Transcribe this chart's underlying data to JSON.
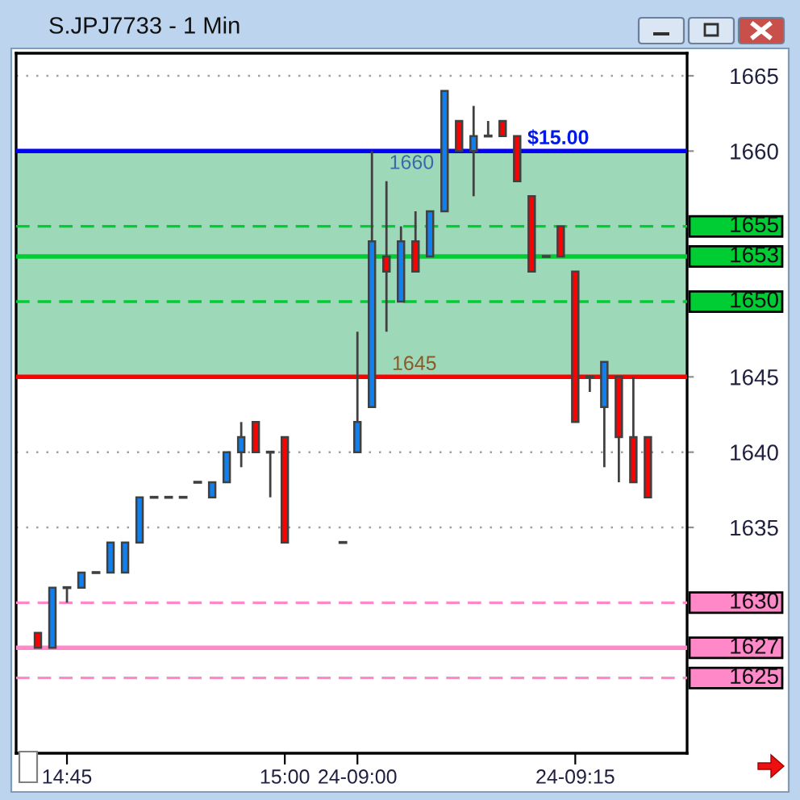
{
  "chart_data": {
    "type": "candlestick",
    "title": "S.JPJ7733 - 1 Min",
    "categories": [
      null,
      null,
      "14:45",
      null,
      null,
      null,
      null,
      null,
      null,
      null,
      null,
      null,
      null,
      null,
      null,
      null,
      null,
      "15:00",
      null,
      null,
      null,
      null,
      "24-09:00",
      null,
      null,
      null,
      null,
      null,
      null,
      null,
      null,
      null,
      null,
      null,
      null,
      null,
      null,
      "24-09:15",
      null,
      null,
      null,
      null,
      null
    ],
    "ohlc": [
      [
        1628,
        1628,
        1627,
        1627
      ],
      [
        1627,
        1631,
        1627,
        1631
      ],
      [
        1631,
        1631,
        1630,
        1631
      ],
      [
        1631,
        1632,
        1631,
        1632
      ],
      [
        1632,
        1632,
        1632,
        1632
      ],
      [
        1632,
        1634,
        1632,
        1634
      ],
      [
        1632,
        1634,
        1632,
        1634
      ],
      [
        1634,
        1637,
        1634,
        1637
      ],
      [
        1637,
        1637,
        1637,
        1637
      ],
      [
        1637,
        1637,
        1637,
        1637
      ],
      [
        1637,
        1637,
        1637,
        1637
      ],
      [
        1638,
        1638,
        1638,
        1638
      ],
      [
        1637,
        1638,
        1637,
        1638
      ],
      [
        1638,
        1640,
        1638,
        1640
      ],
      [
        1640,
        1642,
        1639,
        1641
      ],
      [
        1642,
        1642,
        1640,
        1640
      ],
      [
        1640,
        1640,
        1637,
        1640
      ],
      [
        1641,
        1641,
        1634,
        1634
      ],
      null,
      null,
      null,
      [
        1634,
        1634,
        1634,
        1634
      ],
      [
        1640,
        1648,
        1640,
        1642
      ],
      [
        1643,
        1660,
        1643,
        1654
      ],
      [
        1653,
        1658,
        1648,
        1652
      ],
      [
        1650,
        1655,
        1650,
        1654
      ],
      [
        1654,
        1656,
        1652,
        1652
      ],
      [
        1653,
        1656,
        1653,
        1656
      ],
      [
        1656,
        1664,
        1656,
        1664
      ],
      [
        1662,
        1662,
        1660,
        1660
      ],
      [
        1660,
        1663,
        1657,
        1661
      ],
      [
        1661,
        1662,
        1661,
        1661
      ],
      [
        1662,
        1662,
        1661,
        1661
      ],
      [
        1661,
        1661,
        1658,
        1658
      ],
      [
        1657,
        1657,
        1652,
        1652
      ],
      [
        1653,
        1653,
        1653,
        1653
      ],
      [
        1655,
        1655,
        1653,
        1653
      ],
      [
        1652,
        1652,
        1642,
        1642
      ],
      [
        1645,
        1645,
        1644,
        1645
      ],
      [
        1643,
        1646,
        1639,
        1646
      ],
      [
        1645,
        1645,
        1638,
        1641
      ],
      [
        1641,
        1645,
        1638,
        1638
      ],
      [
        1641,
        1641,
        1637,
        1637
      ]
    ],
    "colors": [
      "#ff0000",
      "#1080f0",
      "#404040",
      "#1080f0",
      "#404040",
      "#1080f0",
      "#1080f0",
      "#1080f0",
      "#404040",
      "#404040",
      "#404040",
      "#404040",
      "#1080f0",
      "#1080f0",
      "#1080f0",
      "#ff0000",
      "#404040",
      "#ff0000",
      null,
      null,
      null,
      "#404040",
      "#1080f0",
      "#1080f0",
      "#ff0000",
      "#1080f0",
      "#ff0000",
      "#1080f0",
      "#1080f0",
      "#ff0000",
      "#1080f0",
      "#404040",
      "#ff0000",
      "#ff0000",
      "#ff0000",
      "#404040",
      "#ff0000",
      "#ff0000",
      "#404040",
      "#1080f0",
      "#ff0000",
      "#ff0000",
      "#ff0000"
    ],
    "ylim": [
      1620,
      1666.5
    ],
    "yticks": [
      1665,
      1660,
      1645,
      1640,
      1635
    ],
    "grid": "y",
    "bands": [
      {
        "axis": "y",
        "from": 1645,
        "to": 1660,
        "color": "#9dd8b8"
      }
    ],
    "ref_lines": [
      {
        "axis": "y",
        "value": 1660,
        "color": "#0000ff",
        "line_style": "solid"
      },
      {
        "axis": "y",
        "value": 1645,
        "color": "#ff0000",
        "line_style": "solid"
      },
      {
        "axis": "y",
        "value": 1655,
        "label": "1655",
        "color": "#00cc33",
        "line_style": "dashed"
      },
      {
        "axis": "y",
        "value": 1653,
        "label": "1653",
        "color": "#00cc33",
        "line_style": "solid"
      },
      {
        "axis": "y",
        "value": 1650,
        "label": "1650",
        "color": "#00cc33",
        "line_style": "dashed"
      },
      {
        "axis": "y",
        "value": 1630,
        "label": "1630",
        "color": "#ff88c8",
        "line_style": "dashed"
      },
      {
        "axis": "y",
        "value": 1627,
        "label": "1627",
        "color": "#ff88c8",
        "line_style": "solid"
      },
      {
        "axis": "y",
        "value": 1625,
        "label": "1625",
        "color": "#ff88c8",
        "line_style": "dashed"
      }
    ],
    "annotations": [
      {
        "text": "$15.00",
        "y": 1660
      },
      {
        "text": "1660",
        "y": 1660
      },
      {
        "text": "1645",
        "y": 1645
      }
    ]
  }
}
